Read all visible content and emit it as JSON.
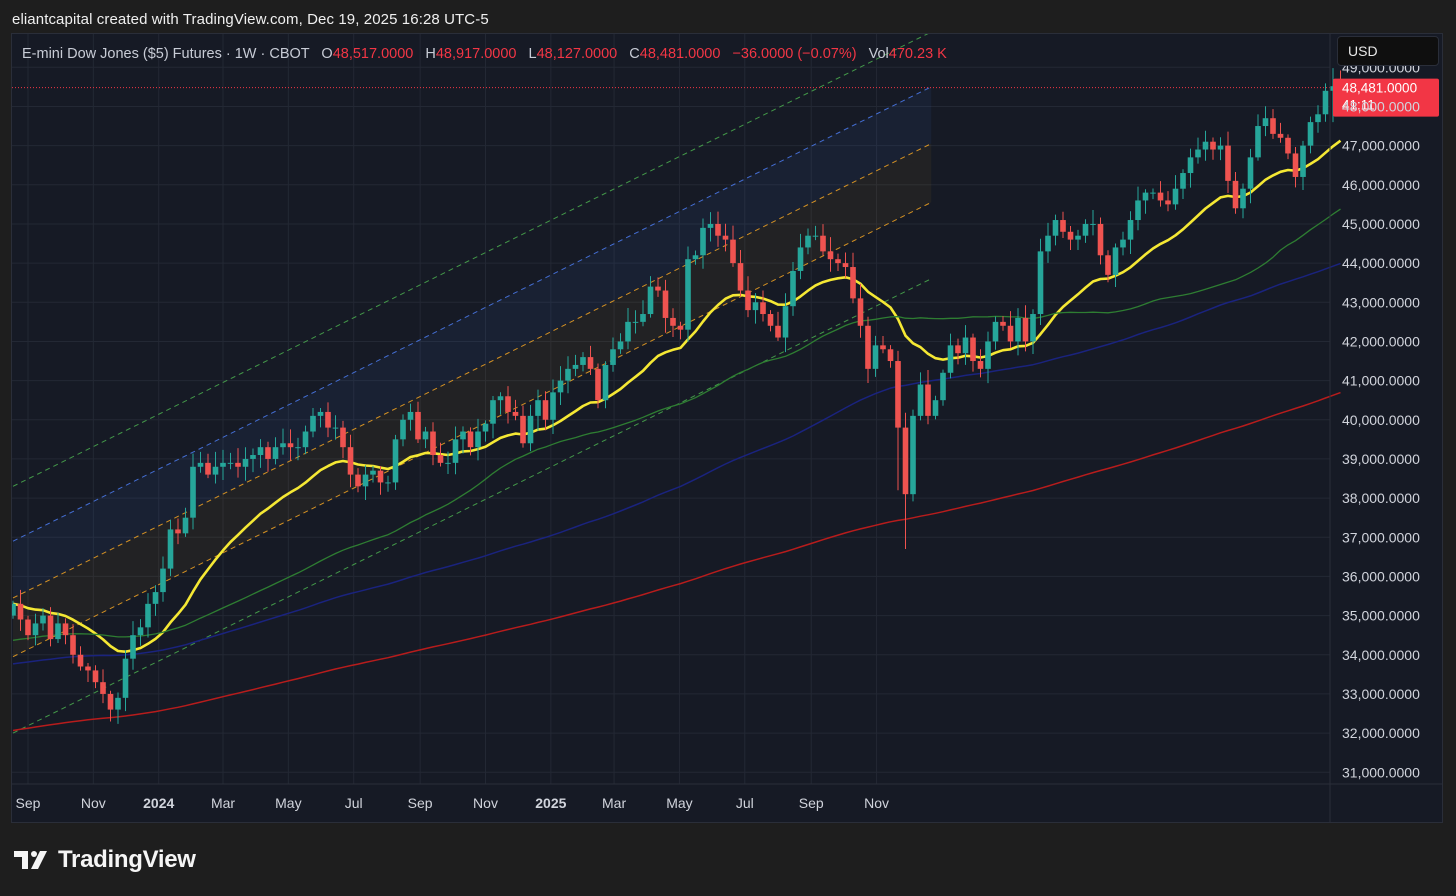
{
  "caption": "eliantcapital created with TradingView.com, Dec 19, 2025 16:28 UTC-5",
  "legend": {
    "symbol": "E-mini Dow Jones ($5) Futures · 1W · CBOT",
    "open_label": "O",
    "open_value": "48,517.0000",
    "high_label": "H",
    "high_value": "48,917.0000",
    "low_label": "L",
    "low_value": "48,127.0000",
    "close_label": "C",
    "close_value": "48,481.0000",
    "change": "−36.0000 (−0.07%)",
    "vol_label": "Vol",
    "vol_value": "470.23 K"
  },
  "currency": "USD",
  "last_price_tag": {
    "price": "48,481.0000",
    "countdown": "41:11"
  },
  "brand": "TradingView",
  "colors": {
    "up": "#26a69a",
    "down": "#ef5350",
    "ema": "#f5e834",
    "sma50": "#2e7d32",
    "sma100": "#1a237e",
    "sma200": "#b71c1c",
    "channel_inner": "#f5a623",
    "channel_mid": "#4c7cf0",
    "channel_outer": "#4caf50",
    "price_line": "#f23645"
  },
  "chart_data": {
    "type": "candlestick",
    "timeframe": "1W",
    "x_tick_labels": [
      "Sep",
      "Nov",
      "2024",
      "Mar",
      "May",
      "Jul",
      "Sep",
      "Nov",
      "2025",
      "Mar",
      "May",
      "Jul",
      "Sep",
      "Nov"
    ],
    "x_tick_bold": [
      false,
      false,
      true,
      false,
      false,
      false,
      false,
      false,
      true,
      false,
      false,
      false,
      false,
      false
    ],
    "x_tick_dates": [
      "2023-09-01",
      "2023-11-01",
      "2024-01-01",
      "2024-03-01",
      "2024-05-01",
      "2024-07-01",
      "2024-09-01",
      "2024-11-01",
      "2025-01-01",
      "2025-03-01",
      "2025-05-01",
      "2025-07-01",
      "2025-09-01",
      "2025-11-01"
    ],
    "y_ticks": [
      31000,
      32000,
      33000,
      34000,
      35000,
      36000,
      37000,
      38000,
      39000,
      40000,
      41000,
      42000,
      43000,
      44000,
      45000,
      46000,
      47000,
      48000,
      49000
    ],
    "y_tick_labels": [
      "31,000.0000",
      "32,000.0000",
      "33,000.0000",
      "34,000.0000",
      "35,000.0000",
      "36,000.0000",
      "37,000.0000",
      "38,000.0000",
      "39,000.0000",
      "40,000.0000",
      "41,000.0000",
      "42,000.0000",
      "43,000.0000",
      "44,000.0000",
      "45,000.0000",
      "46,000.0000",
      "47,000.0000",
      "48,000.0000",
      "49,000.0000"
    ],
    "ylim": [
      30700,
      49850
    ],
    "last_price": 48481,
    "closes": [
      35300,
      34900,
      34500,
      34800,
      35000,
      34400,
      34800,
      34500,
      34000,
      33700,
      33600,
      33300,
      33000,
      32600,
      32900,
      33900,
      34500,
      34700,
      35300,
      35600,
      36200,
      37200,
      37100,
      37500,
      38800,
      38900,
      38600,
      38800,
      38900,
      38900,
      38800,
      39000,
      39100,
      39300,
      39000,
      39300,
      39400,
      39300,
      39300,
      39700,
      40100,
      40200,
      39800,
      39800,
      39300,
      38600,
      38300,
      38600,
      38700,
      38400,
      38400,
      39500,
      40000,
      40200,
      39500,
      39700,
      39100,
      38900,
      38900,
      39500,
      39700,
      39300,
      39700,
      39900,
      40500,
      40600,
      40200,
      40100,
      39400,
      40100,
      40500,
      40000,
      40700,
      41000,
      41300,
      41400,
      41600,
      41300,
      40500,
      41400,
      41800,
      42000,
      42500,
      42500,
      42700,
      43400,
      43300,
      42600,
      42400,
      42300,
      44100,
      44200,
      44900,
      45000,
      44700,
      44600,
      44000,
      43300,
      42800,
      43000,
      42700,
      42400,
      42100,
      42900,
      43800,
      44400,
      44700,
      44700,
      44300,
      44100,
      44000,
      43900,
      43100,
      42400,
      41300,
      41900,
      41800,
      41500,
      39800,
      38100,
      40100,
      40900,
      40100,
      40500,
      41200,
      41900,
      41700,
      42100,
      41500,
      41300,
      42000,
      42500,
      42400,
      42000,
      42600,
      42000,
      42700,
      44300,
      44700,
      45100,
      44800,
      44600,
      44700,
      45000,
      45000,
      44200,
      43700,
      44400,
      44600,
      45100,
      45600,
      45800,
      45800,
      45600,
      45500,
      45900,
      46300,
      46700,
      46900,
      47100,
      46900,
      47000,
      46100,
      45400,
      45900,
      46700,
      47500,
      47700,
      47300,
      47200,
      46800,
      46200,
      47000,
      47600,
      47800,
      48400,
      48517,
      48481
    ],
    "indicators": [
      {
        "name": "EMA 20",
        "color": "#f5e834",
        "width": 2.6
      },
      {
        "name": "SMA 50",
        "color": "#2e7d32",
        "width": 1.3
      },
      {
        "name": "SMA 100",
        "color": "#1a237e",
        "width": 1.5
      },
      {
        "name": "SMA 200",
        "color": "#b71c1c",
        "width": 1.5
      }
    ],
    "regression_channel": {
      "start_date": "2023-08-18",
      "end_date": "2025-12-22",
      "center_start": 34700,
      "center_end": 46300,
      "inner_offsets": [
        -750,
        750
      ],
      "mid_offsets": [
        2200
      ],
      "outer_offsets": [
        -2700,
        3600
      ]
    }
  }
}
